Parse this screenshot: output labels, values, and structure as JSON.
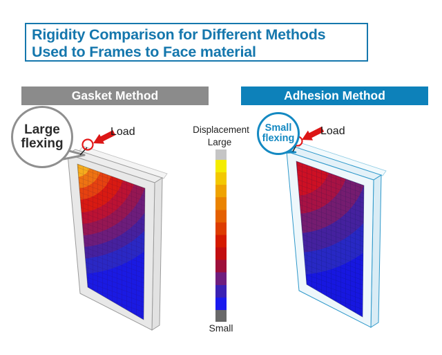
{
  "title": {
    "line1": "Rigidity Comparison for Different Methods",
    "line2": "Used to Frames to Face material"
  },
  "panels": {
    "gasket": {
      "header": "Gasket Method",
      "bubble": {
        "line1": "Large",
        "line2": "flexing"
      },
      "load_label": "Load",
      "field_bands": [
        {
          "to": 0.1,
          "color": "#f6ac1c"
        },
        {
          "to": 0.19,
          "color": "#ee7312"
        },
        {
          "to": 0.28,
          "color": "#e64210"
        },
        {
          "to": 0.38,
          "color": "#d81a12"
        },
        {
          "to": 0.47,
          "color": "#bb1233"
        },
        {
          "to": 0.56,
          "color": "#951753"
        },
        {
          "to": 0.65,
          "color": "#6d1d7b"
        },
        {
          "to": 0.74,
          "color": "#46219e"
        },
        {
          "to": 0.86,
          "color": "#2a28c4"
        },
        {
          "to": 1.0,
          "color": "#1a1ae2"
        }
      ]
    },
    "adhesion": {
      "header": "Adhesion Method",
      "bubble": {
        "line1": "Small",
        "line2": "flexing"
      },
      "load_label": "Load",
      "field_bands": [
        {
          "to": 0.25,
          "color": "#cd1024"
        },
        {
          "to": 0.38,
          "color": "#a81244"
        },
        {
          "to": 0.52,
          "color": "#751c70"
        },
        {
          "to": 0.66,
          "color": "#45219e"
        },
        {
          "to": 0.82,
          "color": "#2828c4"
        },
        {
          "to": 1.0,
          "color": "#1717e0"
        }
      ]
    }
  },
  "legend": {
    "title": "Displacement",
    "top_label": "Large",
    "bottom_label": "Small",
    "top_cap_color": "#c5c5c5",
    "bottom_cap_color": "#696969",
    "segments": [
      "#f4ec00",
      "#f3c800",
      "#efa300",
      "#ea8300",
      "#e46000",
      "#dd3c00",
      "#d41a00",
      "#c20e10",
      "#9e0f3a",
      "#6f1d7e",
      "#3a21b4",
      "#1a1aee"
    ]
  },
  "colors": {
    "title_blue": "#1577ad",
    "header_gray": "#8b8b8b",
    "header_blue": "#0d81ba",
    "bubble_blue": "#1489c2",
    "load_red": "#dc1616",
    "load_circle_red": "#e41b1b"
  }
}
